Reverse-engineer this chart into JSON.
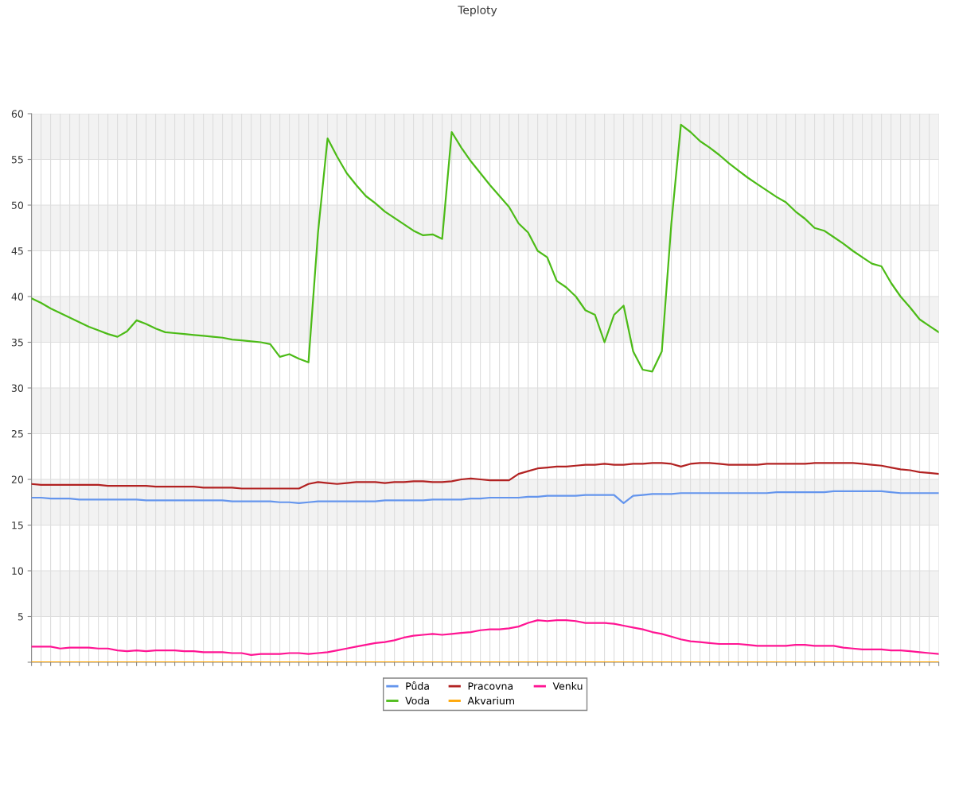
{
  "chart_data": {
    "type": "line",
    "title": "Teploty",
    "categories": [
      null,
      null,
      null,
      null,
      null,
      null,
      null,
      null,
      null,
      null,
      null,
      null,
      null,
      null,
      null,
      null,
      null,
      null,
      null,
      null,
      null,
      null,
      null,
      null,
      null,
      null,
      null,
      null,
      null,
      null,
      null,
      null,
      null,
      null,
      null,
      null,
      null,
      null,
      null,
      null,
      null,
      null,
      null,
      null,
      null,
      null,
      null,
      null,
      null,
      null,
      null,
      null,
      null,
      null,
      null,
      null,
      null,
      null,
      null,
      null,
      null,
      null,
      null,
      null,
      null,
      null,
      null,
      null,
      null,
      null,
      null,
      null,
      null,
      null,
      null,
      null,
      null,
      null,
      null,
      null,
      null,
      null,
      null,
      null,
      null,
      null,
      null,
      null,
      null,
      null,
      null,
      null,
      null,
      null,
      null,
      null
    ],
    "series": [
      {
        "name": "Půda",
        "color": "#6495ed",
        "values": [
          18.0,
          18.0,
          17.9,
          17.9,
          17.9,
          17.8,
          17.8,
          17.8,
          17.8,
          17.8,
          17.8,
          17.8,
          17.7,
          17.7,
          17.7,
          17.7,
          17.7,
          17.7,
          17.7,
          17.7,
          17.7,
          17.6,
          17.6,
          17.6,
          17.6,
          17.6,
          17.5,
          17.5,
          17.4,
          17.5,
          17.6,
          17.6,
          17.6,
          17.6,
          17.6,
          17.6,
          17.6,
          17.7,
          17.7,
          17.7,
          17.7,
          17.7,
          17.8,
          17.8,
          17.8,
          17.8,
          17.9,
          17.9,
          18.0,
          18.0,
          18.0,
          18.0,
          18.1,
          18.1,
          18.2,
          18.2,
          18.2,
          18.2,
          18.3,
          18.3,
          18.3,
          18.3,
          17.4,
          18.2,
          18.3,
          18.4,
          18.4,
          18.4,
          18.5,
          18.5,
          18.5,
          18.5,
          18.5,
          18.5,
          18.5,
          18.5,
          18.5,
          18.5,
          18.6,
          18.6,
          18.6,
          18.6,
          18.6,
          18.6,
          18.7,
          18.7,
          18.7,
          18.7,
          18.7,
          18.7,
          18.6,
          18.5,
          18.5,
          18.5,
          18.5,
          18.5
        ]
      },
      {
        "name": "Voda",
        "color": "#4cbb17",
        "values": [
          39.8,
          39.3,
          38.7,
          38.2,
          37.7,
          37.2,
          36.7,
          36.3,
          35.9,
          35.6,
          36.2,
          37.4,
          37.0,
          36.5,
          36.1,
          36.0,
          35.9,
          35.8,
          35.7,
          35.6,
          35.5,
          35.3,
          35.2,
          35.1,
          35.0,
          34.8,
          33.4,
          33.7,
          33.2,
          32.8,
          47.0,
          57.3,
          55.3,
          53.5,
          52.2,
          51.0,
          50.2,
          49.3,
          48.6,
          47.9,
          47.2,
          46.7,
          46.8,
          46.3,
          58.0,
          56.3,
          54.8,
          53.5,
          52.2,
          51.0,
          49.8,
          48.0,
          47.0,
          45.0,
          44.3,
          41.7,
          41.0,
          40.0,
          38.5,
          38.0,
          35.0,
          38.0,
          39.0,
          34.0,
          32.0,
          31.8,
          34.0,
          48.0,
          58.8,
          58.0,
          57.0,
          56.3,
          55.5,
          54.6,
          53.8,
          53.0,
          52.3,
          51.6,
          50.9,
          50.3,
          49.3,
          48.5,
          47.5,
          47.2,
          46.5,
          45.8,
          45.0,
          44.3,
          43.6,
          43.3,
          41.5,
          40.0,
          38.8,
          37.5,
          36.8,
          36.1
        ]
      },
      {
        "name": "Pracovna",
        "color": "#b22222",
        "values": [
          19.5,
          19.4,
          19.4,
          19.4,
          19.4,
          19.4,
          19.4,
          19.4,
          19.3,
          19.3,
          19.3,
          19.3,
          19.3,
          19.2,
          19.2,
          19.2,
          19.2,
          19.2,
          19.1,
          19.1,
          19.1,
          19.1,
          19.0,
          19.0,
          19.0,
          19.0,
          19.0,
          19.0,
          19.0,
          19.5,
          19.7,
          19.6,
          19.5,
          19.6,
          19.7,
          19.7,
          19.7,
          19.6,
          19.7,
          19.7,
          19.8,
          19.8,
          19.7,
          19.7,
          19.8,
          20.0,
          20.1,
          20.0,
          19.9,
          19.9,
          19.9,
          20.6,
          20.9,
          21.2,
          21.3,
          21.4,
          21.4,
          21.5,
          21.6,
          21.6,
          21.7,
          21.6,
          21.6,
          21.7,
          21.7,
          21.8,
          21.8,
          21.7,
          21.4,
          21.7,
          21.8,
          21.8,
          21.7,
          21.6,
          21.6,
          21.6,
          21.6,
          21.7,
          21.7,
          21.7,
          21.7,
          21.7,
          21.8,
          21.8,
          21.8,
          21.8,
          21.8,
          21.7,
          21.6,
          21.5,
          21.3,
          21.1,
          21.0,
          20.8,
          20.7,
          20.6
        ]
      },
      {
        "name": "Akvarium",
        "color": "#ffa500",
        "values": [
          0,
          0,
          0,
          0,
          0,
          0,
          0,
          0,
          0,
          0,
          0,
          0,
          0,
          0,
          0,
          0,
          0,
          0,
          0,
          0,
          0,
          0,
          0,
          0,
          0,
          0,
          0,
          0,
          0,
          0,
          0,
          0,
          0,
          0,
          0,
          0,
          0,
          0,
          0,
          0,
          0,
          0,
          0,
          0,
          0,
          0,
          0,
          0,
          0,
          0,
          0,
          0,
          0,
          0,
          0,
          0,
          0,
          0,
          0,
          0,
          0,
          0,
          0,
          0,
          0,
          0,
          0,
          0,
          0,
          0,
          0,
          0,
          0,
          0,
          0,
          0,
          0,
          0,
          0,
          0,
          0,
          0,
          0,
          0,
          0,
          0,
          0,
          0,
          0,
          0,
          0,
          0,
          0,
          0,
          0,
          0
        ]
      },
      {
        "name": "Venku",
        "color": "#ff1493",
        "values": [
          1.7,
          1.7,
          1.7,
          1.5,
          1.6,
          1.6,
          1.6,
          1.5,
          1.5,
          1.3,
          1.2,
          1.3,
          1.2,
          1.3,
          1.3,
          1.3,
          1.2,
          1.2,
          1.1,
          1.1,
          1.1,
          1.0,
          1.0,
          0.8,
          0.9,
          0.9,
          0.9,
          1.0,
          1.0,
          0.9,
          1.0,
          1.1,
          1.3,
          1.5,
          1.7,
          1.9,
          2.1,
          2.2,
          2.4,
          2.7,
          2.9,
          3.0,
          3.1,
          3.0,
          3.1,
          3.2,
          3.3,
          3.5,
          3.6,
          3.6,
          3.7,
          3.9,
          4.3,
          4.6,
          4.5,
          4.6,
          4.6,
          4.5,
          4.3,
          4.3,
          4.3,
          4.2,
          4.0,
          3.8,
          3.6,
          3.3,
          3.1,
          2.8,
          2.5,
          2.3,
          2.2,
          2.1,
          2.0,
          2.0,
          2.0,
          1.9,
          1.8,
          1.8,
          1.8,
          1.8,
          1.9,
          1.9,
          1.8,
          1.8,
          1.8,
          1.6,
          1.5,
          1.4,
          1.4,
          1.4,
          1.3,
          1.3,
          1.2,
          1.1,
          1.0,
          0.9
        ]
      }
    ],
    "ylim": [
      0,
      60
    ],
    "yticks": [
      {
        "value": 0,
        "label": null
      },
      5,
      10,
      15,
      20,
      25,
      30,
      35,
      40,
      45,
      50,
      55,
      60
    ],
    "grid": true,
    "legend": "bottom",
    "marker": "none",
    "line_style": "solid"
  }
}
